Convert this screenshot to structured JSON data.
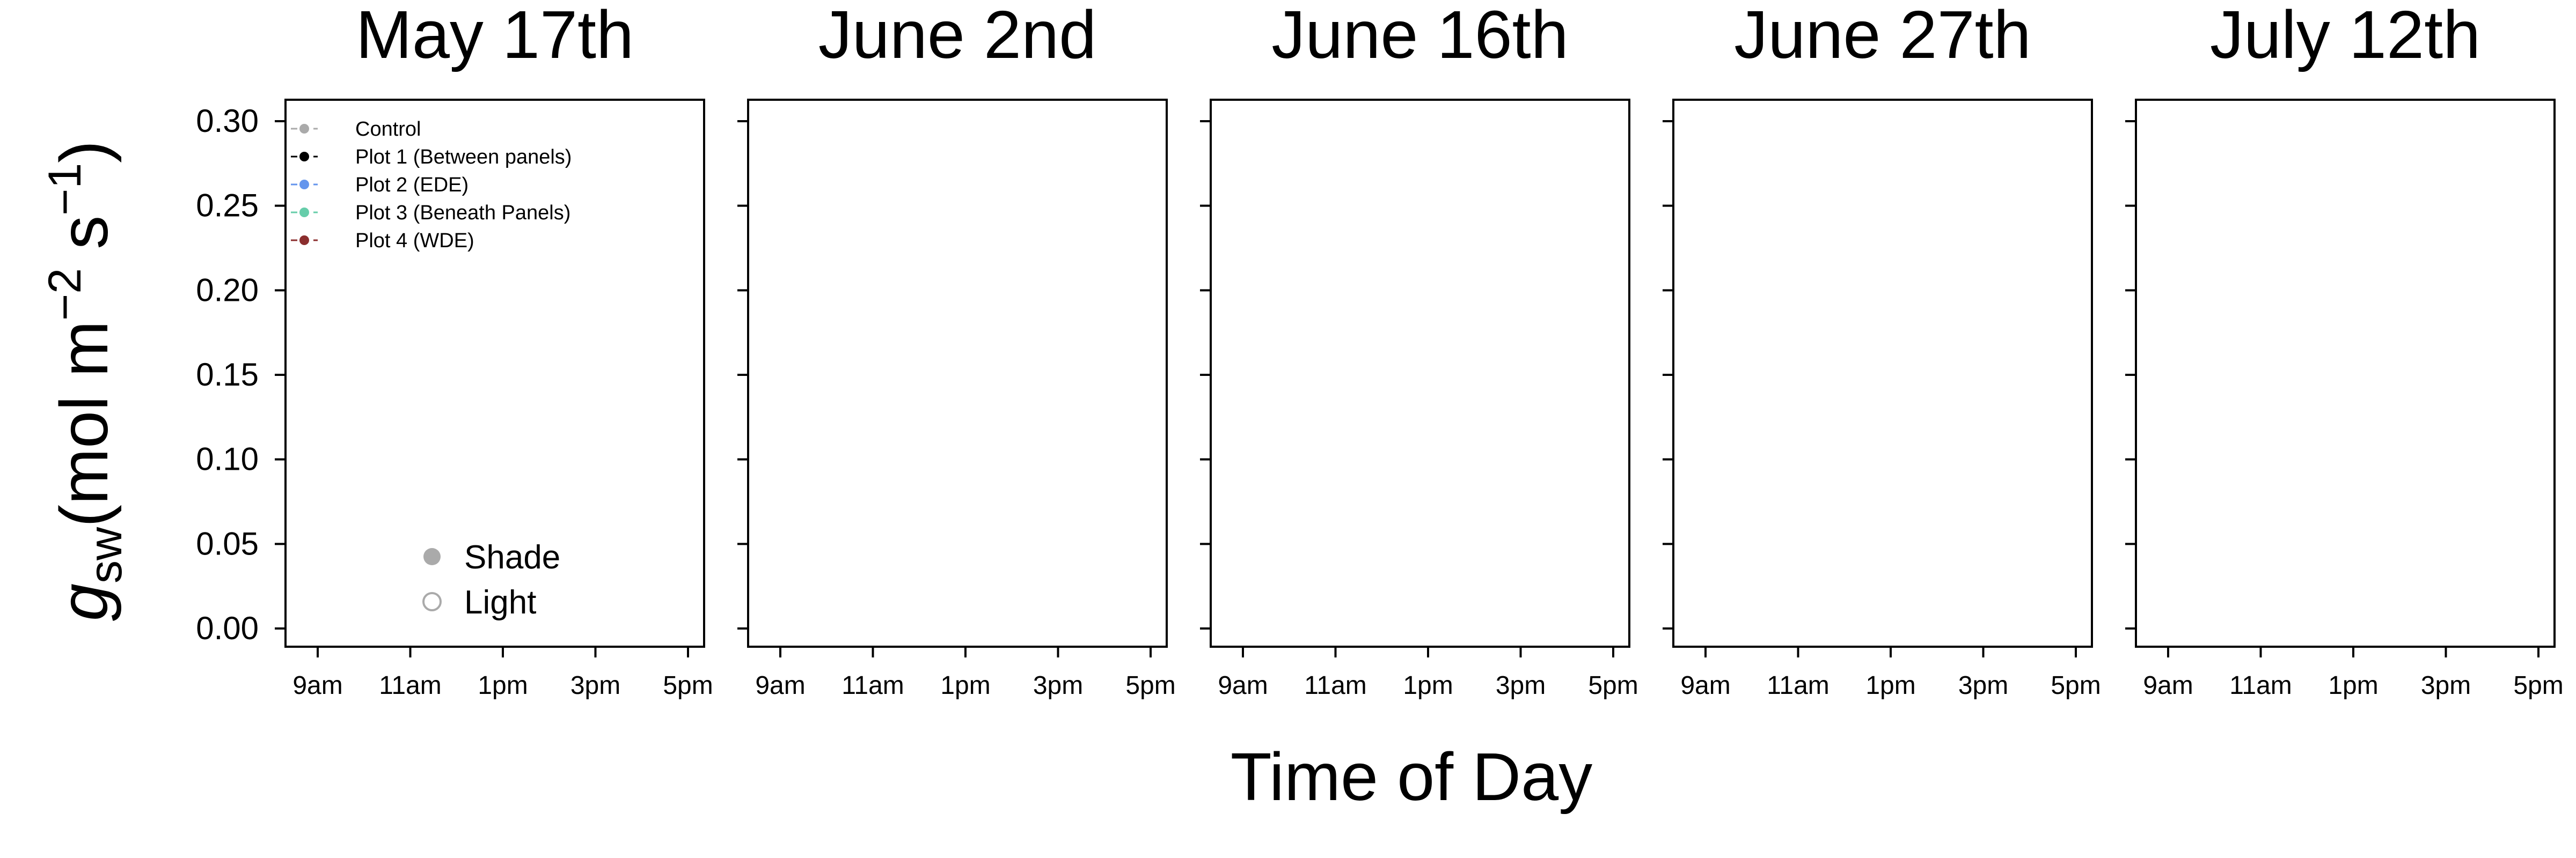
{
  "chart_data": {
    "type": "line",
    "panels": [
      {
        "title": "May 17th"
      },
      {
        "title": "June 2nd"
      },
      {
        "title": "June 16th"
      },
      {
        "title": "June 27th"
      },
      {
        "title": "July 12th"
      }
    ],
    "ylabel": {
      "symbol": "g",
      "subscript": "sw",
      "unit_open": "(mol m",
      "exp1": "−2",
      "unit_mid": " s",
      "exp2": "−1",
      "unit_close": ")"
    },
    "xlabel": "Time of Day",
    "ylim": [
      0.0,
      0.3
    ],
    "yticks": [
      {
        "value": 0.0,
        "label": "0.00"
      },
      {
        "value": 0.05,
        "label": "0.05"
      },
      {
        "value": 0.1,
        "label": "0.10"
      },
      {
        "value": 0.15,
        "label": "0.15"
      },
      {
        "value": 0.2,
        "label": "0.20"
      },
      {
        "value": 0.25,
        "label": "0.25"
      },
      {
        "value": 0.3,
        "label": "0.30"
      }
    ],
    "xlim": [
      8.5,
      17.5
    ],
    "xticks": [
      {
        "hour": 9,
        "label": "9am"
      },
      {
        "hour": 11,
        "label": "11am"
      },
      {
        "hour": 13,
        "label": "1pm"
      },
      {
        "hour": 15,
        "label": "3pm"
      },
      {
        "hour": 17,
        "label": "5pm"
      }
    ],
    "grid": false,
    "series": [
      {
        "name": "Control",
        "color": "#aaaaaa",
        "line": "dashed",
        "points": []
      },
      {
        "name": "Plot 1 (Between panels)",
        "color": "#000000",
        "line": "dashed",
        "points": []
      },
      {
        "name": "Plot 2 (EDE)",
        "color": "#6495ed",
        "line": "dashed",
        "points": []
      },
      {
        "name": "Plot 3 (Beneath Panels)",
        "color": "#66cdaa",
        "line": "dashed",
        "points": []
      },
      {
        "name": "Plot 4 (WDE)",
        "color": "#8b2e2e",
        "line": "dashed",
        "points": []
      }
    ],
    "legend": {
      "placement": "top-left",
      "panel": "May 17th"
    },
    "marker_legend": {
      "placement": "bottom-left",
      "panel": "May 17th",
      "items": [
        {
          "label": "Shade",
          "marker": "filled-circle",
          "color": "#aaaaaa"
        },
        {
          "label": "Light",
          "marker": "open-circle",
          "color": "#aaaaaa"
        }
      ]
    }
  }
}
